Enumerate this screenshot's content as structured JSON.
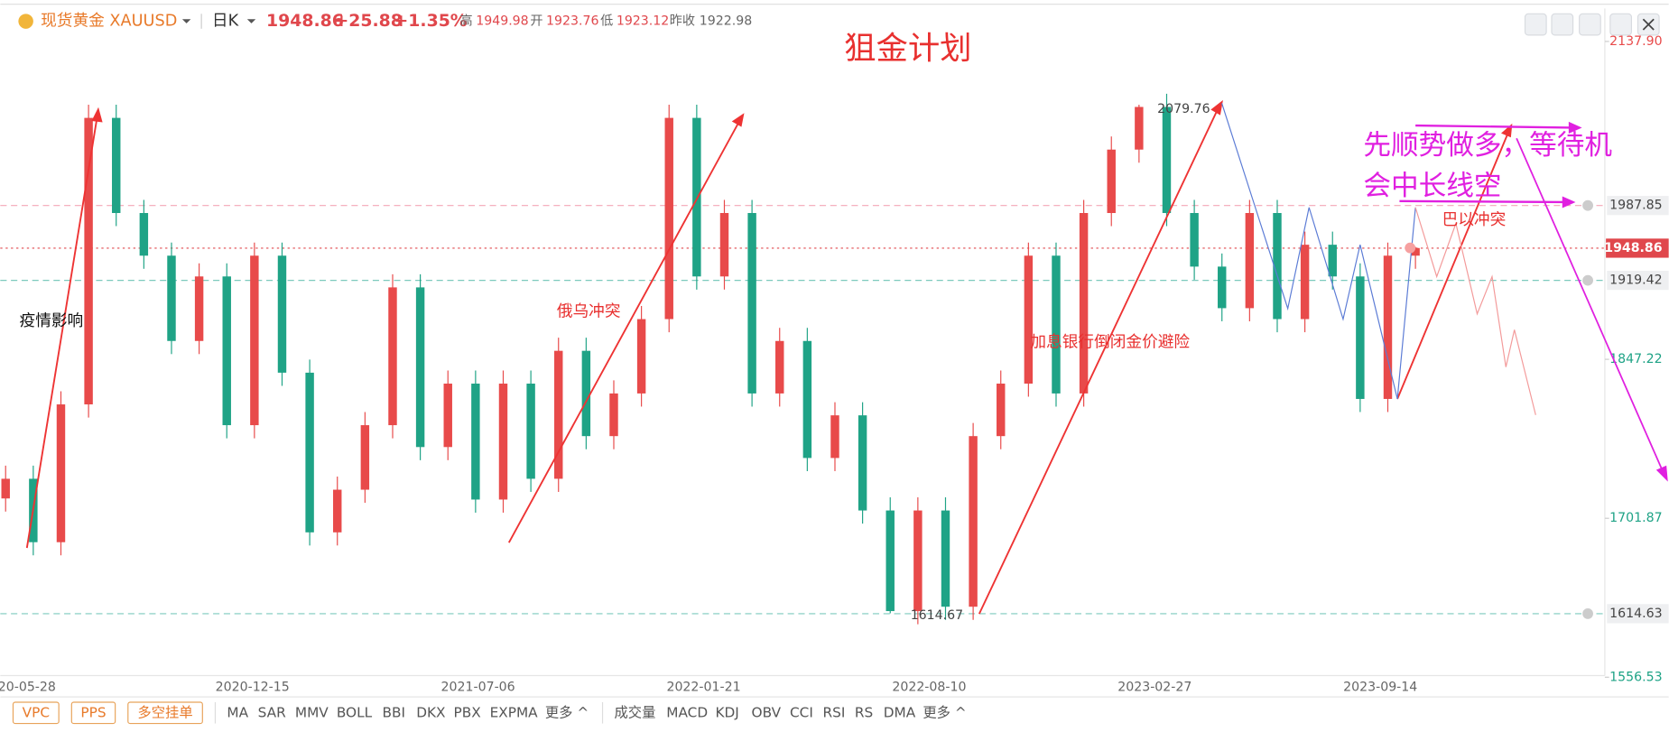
{
  "header": {
    "symbol": "现货黄金 XAUUSD",
    "period": "日K",
    "price": "1948.86",
    "change": "+25.88",
    "change_pct": "+1.35%",
    "stats": [
      {
        "name": "高",
        "value": "1949.98"
      },
      {
        "name": "开",
        "value": "1923.76"
      },
      {
        "name": "低",
        "value": "1923.12"
      },
      {
        "name": "昨收",
        "value": "1922.98"
      }
    ]
  },
  "title": "狙金计划",
  "annotations": {
    "covid": "疫情影响",
    "russia_ukraine": "俄乌冲突",
    "rate_hike": "加息银行倒闭金价避险",
    "israel": "巴以冲突",
    "plan_line1": "先顺势做多，等待机",
    "plan_line2": "会中长线空",
    "high": 2079.76,
    "low": 1614.67
  },
  "price_chart": {
    "type": "candlestick",
    "ylim": [
      1558,
      2168
    ],
    "yticks": [
      {
        "value": 2137.9,
        "label": "2137.90"
      },
      1847.22,
      1701.87,
      1556.53
    ],
    "price_lines": [
      {
        "value": 1987.85,
        "label": "1987.85",
        "color": "#f4a6b6"
      },
      {
        "value": 1919.42,
        "label": "1919.42",
        "color": "#7cc9bd"
      },
      {
        "value": 1614.63,
        "label": "1614.63",
        "color": "#7cc9bd"
      }
    ],
    "last_price": {
      "value": 1948.86,
      "label": "1948.86",
      "color": "#e0474c"
    },
    "up_color": "#e84a4a",
    "down_color": "#1fa386",
    "categories": [
      "20-05-28",
      "2020-12-15",
      "2021-07-06",
      "2022-01-21",
      "2022-08-10",
      "2023-02-27",
      "2023-09-14"
    ],
    "candles": [
      [
        1720,
        1750,
        1708,
        1738
      ],
      [
        1738,
        1750,
        1668,
        1680
      ],
      [
        1680,
        1818,
        1668,
        1806
      ],
      [
        1806,
        2080,
        1794,
        2068
      ],
      [
        2068,
        2080,
        1969,
        1981
      ],
      [
        1981,
        1993,
        1930,
        1942
      ],
      [
        1942,
        1954,
        1852,
        1864
      ],
      [
        1864,
        1935,
        1852,
        1923
      ],
      [
        1923,
        1935,
        1775,
        1787
      ],
      [
        1787,
        1954,
        1775,
        1942
      ],
      [
        1942,
        1954,
        1823,
        1835
      ],
      [
        1835,
        1847,
        1677,
        1689
      ],
      [
        1689,
        1740,
        1677,
        1728
      ],
      [
        1728,
        1799,
        1716,
        1787
      ],
      [
        1787,
        1925,
        1775,
        1913
      ],
      [
        1913,
        1925,
        1755,
        1767
      ],
      [
        1767,
        1837,
        1755,
        1825
      ],
      [
        1825,
        1837,
        1707,
        1719
      ],
      [
        1719,
        1837,
        1707,
        1825
      ],
      [
        1825,
        1837,
        1726,
        1738
      ],
      [
        1738,
        1867,
        1726,
        1855
      ],
      [
        1855,
        1867,
        1765,
        1777
      ],
      [
        1777,
        1828,
        1765,
        1816
      ],
      [
        1816,
        1896,
        1804,
        1884
      ],
      [
        1884,
        2080,
        1872,
        2068
      ],
      [
        2068,
        2080,
        1911,
        1923
      ],
      [
        1923,
        1993,
        1911,
        1981
      ],
      [
        1981,
        1993,
        1804,
        1816
      ],
      [
        1816,
        1876,
        1804,
        1864
      ],
      [
        1864,
        1876,
        1745,
        1757
      ],
      [
        1757,
        1808,
        1745,
        1796
      ],
      [
        1796,
        1808,
        1697,
        1709
      ],
      [
        1709,
        1721,
        1615,
        1617
      ],
      [
        1617,
        1721,
        1605,
        1709
      ],
      [
        1709,
        1721,
        1609,
        1621
      ],
      [
        1621,
        1789,
        1609,
        1777
      ],
      [
        1777,
        1837,
        1765,
        1825
      ],
      [
        1825,
        1954,
        1813,
        1942
      ],
      [
        1942,
        1954,
        1804,
        1816
      ],
      [
        1816,
        1993,
        1804,
        1981
      ],
      [
        1981,
        2051,
        1969,
        2039
      ],
      [
        2039,
        2080,
        2027,
        2078
      ],
      [
        2078,
        2090,
        1969,
        1981
      ],
      [
        1981,
        1993,
        1920,
        1932
      ],
      [
        1932,
        1944,
        1882,
        1894
      ],
      [
        1894,
        1993,
        1882,
        1981
      ],
      [
        1981,
        1993,
        1872,
        1884
      ],
      [
        1884,
        1964,
        1872,
        1952
      ],
      [
        1952,
        1964,
        1911,
        1923
      ],
      [
        1923,
        1935,
        1799,
        1811
      ],
      [
        1811,
        1954,
        1799,
        1942
      ],
      [
        1942,
        1950,
        1930,
        1949
      ]
    ]
  },
  "toolbar": {
    "buttons": [
      "VPC",
      "PPS",
      "多空挂单"
    ],
    "main_indicators": [
      "MA",
      "SAR",
      "MMV",
      "BOLL",
      "BBI",
      "DKX",
      "PBX",
      "EXPMA",
      "更多 ^"
    ],
    "sub_indicators": [
      "成交量",
      "MACD",
      "KDJ",
      "OBV",
      "CCI",
      "RSI",
      "RS",
      "DMA",
      "更多 ^"
    ]
  }
}
